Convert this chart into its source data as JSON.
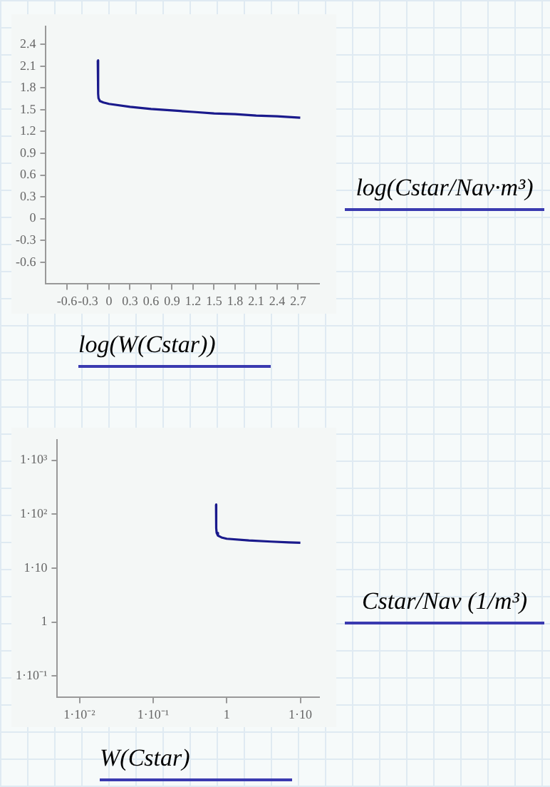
{
  "chart_data": [
    {
      "type": "line",
      "xlabel": "log(W(Cstar))",
      "ylabel": "log(Cstar/Nav·m³)",
      "x": [
        -0.16,
        -0.155,
        -0.15,
        -0.13,
        -0.08,
        0,
        0.3,
        0.6,
        0.9,
        1.2,
        1.5,
        1.8,
        2.1,
        2.4,
        2.73
      ],
      "series": [
        {
          "color": "#1a1a8c",
          "values": [
            2.18,
            1.72,
            1.66,
            1.62,
            1.6,
            1.58,
            1.54,
            1.51,
            1.49,
            1.47,
            1.45,
            1.44,
            1.42,
            1.41,
            1.39
          ]
        }
      ],
      "xlim": [
        -0.9,
        3.0
      ],
      "ylim": [
        -0.9,
        2.65
      ],
      "xticks": [
        -0.6,
        -0.3,
        0,
        0.3,
        0.6,
        0.9,
        1.2,
        1.5,
        1.8,
        2.1,
        2.4,
        2.7
      ],
      "yticks": [
        -0.6,
        -0.3,
        0,
        0.3,
        0.6,
        0.9,
        1.2,
        1.5,
        1.8,
        2.1,
        2.4
      ],
      "grid": false,
      "legend": false,
      "marker": "none",
      "line_style": "solid"
    },
    {
      "type": "line",
      "xlabel": "W(Cstar)",
      "ylabel": "Cstar/Nav (1/m³)",
      "log": "xy",
      "x": [
        0.716,
        0.72,
        0.73,
        0.76,
        0.85,
        1,
        2,
        4,
        7,
        10
      ],
      "series": [
        {
          "color": "#1a1a8c",
          "values": [
            151,
            55,
            45,
            40,
            37,
            35,
            32.5,
            31,
            30,
            29.5
          ]
        }
      ],
      "xlim": [
        0.005,
        18
      ],
      "ylim": [
        0.04,
        2400
      ],
      "xticks": [
        {
          "value": 0.01,
          "label": "1·10⁻²"
        },
        {
          "value": 0.1,
          "label": "1·10⁻¹"
        },
        1,
        {
          "value": 10,
          "label": "1·10"
        }
      ],
      "yticks": [
        {
          "value": 0.1,
          "label": "1·10⁻¹"
        },
        1,
        {
          "value": 10,
          "label": "1·10"
        },
        {
          "value": 100,
          "label": "1·10²"
        },
        {
          "value": 1000,
          "label": "1·10³"
        }
      ],
      "grid": false,
      "legend": false,
      "marker": "none",
      "line_style": "solid"
    }
  ]
}
